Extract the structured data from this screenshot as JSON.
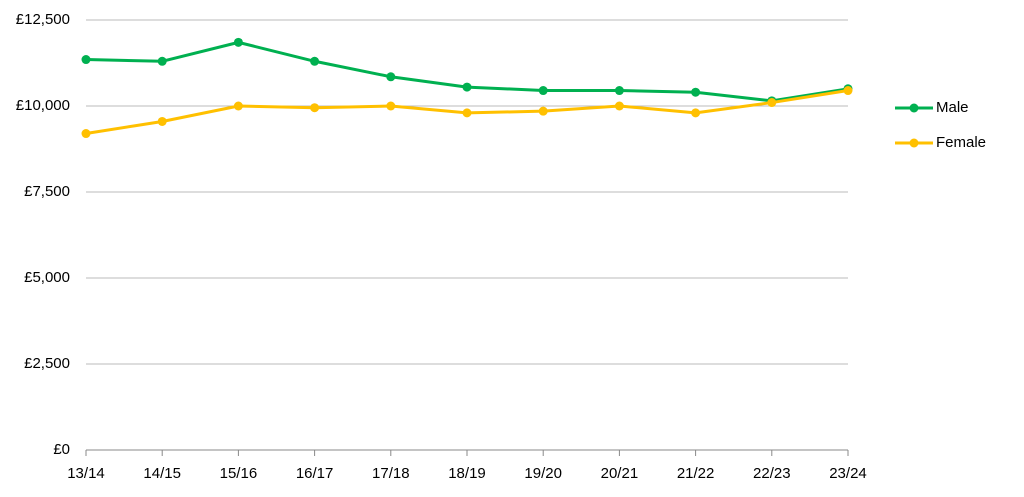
{
  "chart_data": {
    "type": "line",
    "categories": [
      "13/14",
      "14/15",
      "15/16",
      "16/17",
      "17/18",
      "18/19",
      "19/20",
      "20/21",
      "21/22",
      "22/23",
      "23/24"
    ],
    "series": [
      {
        "name": "Male",
        "color": "#00b050",
        "values": [
          11350,
          11300,
          11850,
          11300,
          10850,
          10550,
          10450,
          10450,
          10400,
          10150,
          10500
        ]
      },
      {
        "name": "Female",
        "color": "#ffc000",
        "values": [
          9200,
          9550,
          10000,
          9950,
          10000,
          9800,
          9850,
          10000,
          9800,
          10100,
          10450
        ]
      }
    ],
    "ylim": [
      0,
      12500
    ],
    "yticks": [
      {
        "value": 0,
        "label": "£0"
      },
      {
        "value": 2500,
        "label": "£2,500"
      },
      {
        "value": 5000,
        "label": "£5,000"
      },
      {
        "value": 7500,
        "label": "£7,500"
      },
      {
        "value": 10000,
        "label": "£10,000"
      },
      {
        "value": 12500,
        "label": "£12,500"
      }
    ],
    "grid": true,
    "legend": "right"
  }
}
